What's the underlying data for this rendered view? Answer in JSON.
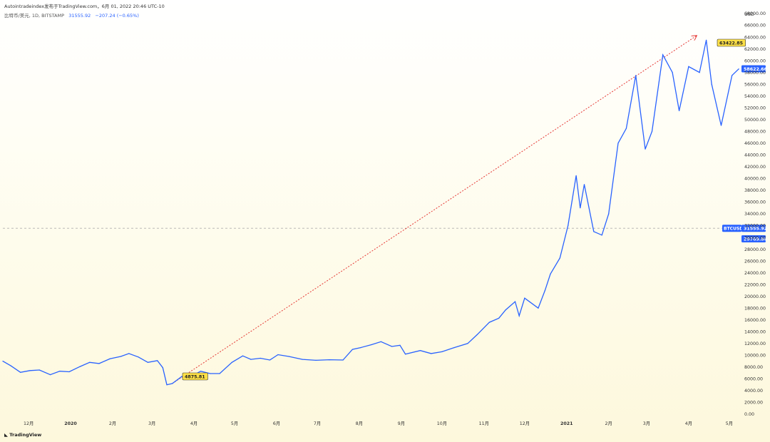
{
  "header": {
    "publisher_line": "Autointradeindex发布于TradingView.com，6月 01, 2022 20:46 UTC-10",
    "symbol": "比特币/美元, 1D, BITSTAMP",
    "last_price": "31555.92",
    "change": "−207.24 (−0.65%)"
  },
  "footer": {
    "brand": "TradingView"
  },
  "colors": {
    "line": "#2962ff",
    "arrow": "#e53935",
    "label_yellow": "#fde047",
    "price_tag": "#2962ff"
  },
  "chart_data": {
    "type": "line",
    "ylabel": "USD",
    "ylim": [
      0,
      68000
    ],
    "y_ticks": [
      "0.00",
      "2000.00",
      "4000.00",
      "6000.00",
      "8000.00",
      "10000.00",
      "12000.00",
      "14000.00",
      "16000.00",
      "18000.00",
      "20000.00",
      "22000.00",
      "24000.00",
      "26000.00",
      "28000.00",
      "30000.00",
      "32000.00",
      "34000.00",
      "36000.00",
      "38000.00",
      "40000.00",
      "42000.00",
      "44000.00",
      "46000.00",
      "48000.00",
      "50000.00",
      "52000.00",
      "54000.00",
      "56000.00",
      "58000.00",
      "60000.00",
      "62000.00",
      "64000.00",
      "66000.00",
      "68000.00"
    ],
    "x_ticks": [
      {
        "label": "12月",
        "date": "2019-12-01"
      },
      {
        "label": "2020",
        "date": "2020-01-01"
      },
      {
        "label": "2月",
        "date": "2020-02-01"
      },
      {
        "label": "3月",
        "date": "2020-03-01"
      },
      {
        "label": "4月",
        "date": "2020-04-01"
      },
      {
        "label": "5月",
        "date": "2020-05-01"
      },
      {
        "label": "6月",
        "date": "2020-06-01"
      },
      {
        "label": "7月",
        "date": "2020-07-01"
      },
      {
        "label": "8月",
        "date": "2020-08-01"
      },
      {
        "label": "9月",
        "date": "2020-09-01"
      },
      {
        "label": "10月",
        "date": "2020-10-01"
      },
      {
        "label": "11月",
        "date": "2020-11-01"
      },
      {
        "label": "12月",
        "date": "2020-12-01"
      },
      {
        "label": "2021",
        "date": "2021-01-01"
      },
      {
        "label": "2月",
        "date": "2021-02-01"
      },
      {
        "label": "3月",
        "date": "2021-03-01"
      },
      {
        "label": "4月",
        "date": "2021-04-01"
      },
      {
        "label": "5月",
        "date": "2021-05-01"
      }
    ],
    "series": [
      {
        "points": [
          [
            "2019-11-12",
            9000
          ],
          [
            "2019-11-18",
            8200
          ],
          [
            "2019-11-25",
            7100
          ],
          [
            "2019-12-02",
            7400
          ],
          [
            "2019-12-09",
            7500
          ],
          [
            "2019-12-17",
            6700
          ],
          [
            "2019-12-24",
            7300
          ],
          [
            "2019-12-31",
            7200
          ],
          [
            "2020-01-08",
            8100
          ],
          [
            "2020-01-15",
            8800
          ],
          [
            "2020-01-22",
            8600
          ],
          [
            "2020-01-30",
            9400
          ],
          [
            "2020-02-07",
            9800
          ],
          [
            "2020-02-13",
            10300
          ],
          [
            "2020-02-20",
            9700
          ],
          [
            "2020-02-27",
            8800
          ],
          [
            "2020-03-05",
            9100
          ],
          [
            "2020-03-09",
            7900
          ],
          [
            "2020-03-12",
            5000
          ],
          [
            "2020-03-16",
            5200
          ],
          [
            "2020-03-23",
            6400
          ],
          [
            "2020-03-30",
            6400
          ],
          [
            "2020-04-06",
            7300
          ],
          [
            "2020-04-13",
            6900
          ],
          [
            "2020-04-20",
            6900
          ],
          [
            "2020-04-29",
            8800
          ],
          [
            "2020-05-07",
            9900
          ],
          [
            "2020-05-13",
            9300
          ],
          [
            "2020-05-20",
            9500
          ],
          [
            "2020-05-27",
            9200
          ],
          [
            "2020-06-02",
            10100
          ],
          [
            "2020-06-10",
            9800
          ],
          [
            "2020-06-20",
            9300
          ],
          [
            "2020-06-30",
            9150
          ],
          [
            "2020-07-10",
            9250
          ],
          [
            "2020-07-20",
            9200
          ],
          [
            "2020-07-27",
            11000
          ],
          [
            "2020-08-02",
            11300
          ],
          [
            "2020-08-10",
            11800
          ],
          [
            "2020-08-17",
            12300
          ],
          [
            "2020-08-25",
            11500
          ],
          [
            "2020-08-31",
            11700
          ],
          [
            "2020-09-04",
            10200
          ],
          [
            "2020-09-15",
            10800
          ],
          [
            "2020-09-23",
            10300
          ],
          [
            "2020-10-01",
            10600
          ],
          [
            "2020-10-10",
            11300
          ],
          [
            "2020-10-20",
            12000
          ],
          [
            "2020-10-27",
            13500
          ],
          [
            "2020-11-05",
            15600
          ],
          [
            "2020-11-12",
            16300
          ],
          [
            "2020-11-17",
            17700
          ],
          [
            "2020-11-24",
            19100
          ],
          [
            "2020-11-27",
            16700
          ],
          [
            "2020-12-01",
            19700
          ],
          [
            "2020-12-11",
            18000
          ],
          [
            "2020-12-16",
            21000
          ],
          [
            "2020-12-20",
            23800
          ],
          [
            "2020-12-27",
            26500
          ],
          [
            "2021-01-02",
            32000
          ],
          [
            "2021-01-08",
            40500
          ],
          [
            "2021-01-11",
            35000
          ],
          [
            "2021-01-14",
            39000
          ],
          [
            "2021-01-21",
            31000
          ],
          [
            "2021-01-27",
            30400
          ],
          [
            "2021-02-01",
            34000
          ],
          [
            "2021-02-08",
            46000
          ],
          [
            "2021-02-14",
            48500
          ],
          [
            "2021-02-21",
            57500
          ],
          [
            "2021-02-28",
            45000
          ],
          [
            "2021-03-05",
            48000
          ],
          [
            "2021-03-13",
            61000
          ],
          [
            "2021-03-20",
            58000
          ],
          [
            "2021-03-25",
            51500
          ],
          [
            "2021-04-01",
            59000
          ],
          [
            "2021-04-09",
            58000
          ],
          [
            "2021-04-14",
            63500
          ],
          [
            "2021-04-18",
            56000
          ],
          [
            "2021-04-25",
            49000
          ],
          [
            "2021-05-03",
            57500
          ],
          [
            "2021-05-08",
            58600
          ]
        ]
      }
    ],
    "annotations": {
      "low_label": "4875.81",
      "high_label": "63422.85",
      "current_price_tag": "58622.66",
      "btcusd_tag_name": "BTCUSD",
      "btcusd_tag_value": "31555.92",
      "level_tag": "29769.86",
      "arrow": {
        "from": [
          "2020-03-16",
          5200
        ],
        "to": [
          "2021-04-14",
          64200
        ]
      }
    }
  }
}
